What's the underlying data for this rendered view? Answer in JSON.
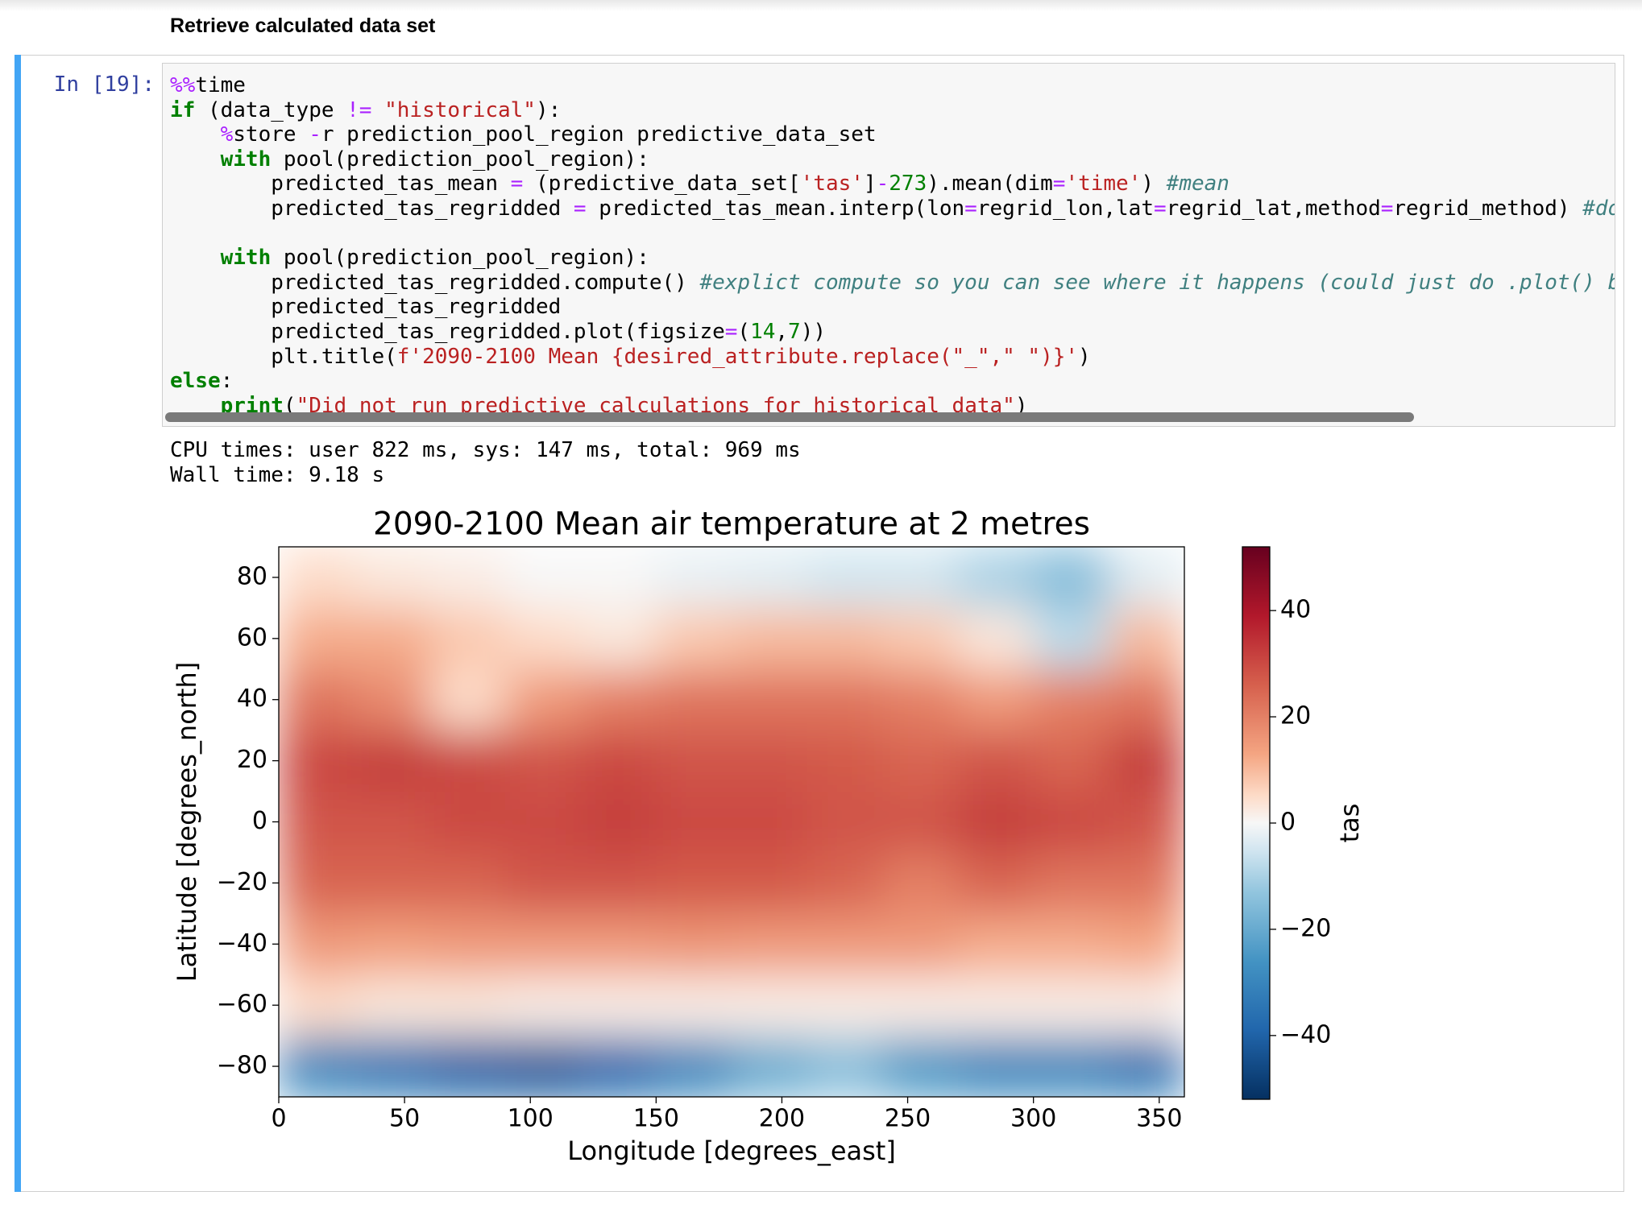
{
  "header": {
    "title": "Retrieve calculated data set"
  },
  "cell": {
    "prompt": "In [19]:",
    "code": "%%time\nif (data_type != \"historical\"):\n    %store -r prediction_pool_region predictive_data_set\n    with pool(prediction_pool_region):\n        predicted_tas_mean = (predictive_data_set['tas']-273).mean(dim='time') #mean\n        predicted_tas_regridded = predicted_tas_mean.interp(lon=regrid_lon,lat=regrid_lat,method=regrid_method) #dodgy\n\n    with pool(prediction_pool_region):\n        predicted_tas_regridded.compute() #explict compute so you can see where it happens (could just do .plot() but i\n        predicted_tas_regridded\n        predicted_tas_regridded.plot(figsize=(14,7))\n        plt.title(f'2090-2100 Mean {desired_attribute.replace(\"_\",\" \")}')\nelse:\n    print(\"Did not run predictive calculations for historical data\")",
    "output": [
      "CPU times: user 822 ms, sys: 147 ms, total: 969 ms",
      "Wall time: 9.18 s"
    ]
  },
  "chart_data": {
    "type": "heatmap",
    "title": "2090-2100 Mean air temperature at 2 metres",
    "x_label": "Longitude [degrees_east]",
    "y_label": "Latitude [degrees_north]",
    "colorbar_label": "tas",
    "colormap": "RdBu_r",
    "x": [
      15,
      45,
      75,
      105,
      135,
      165,
      195,
      225,
      255,
      285,
      315,
      345
    ],
    "y": [
      -80,
      -60,
      -40,
      -20,
      0,
      20,
      40,
      60,
      80
    ],
    "z": [
      [
        -30,
        -35,
        -40,
        -42,
        -38,
        -30,
        -20,
        -15,
        -25,
        -30,
        -30,
        -35
      ],
      [
        5,
        3,
        3,
        2,
        2,
        2,
        2,
        2,
        2,
        2,
        2,
        2
      ],
      [
        15,
        14,
        15,
        15,
        15,
        16,
        15,
        15,
        15,
        12,
        12,
        13
      ],
      [
        25,
        25,
        25,
        28,
        28,
        27,
        27,
        25,
        20,
        25,
        22,
        22
      ],
      [
        28,
        28,
        30,
        30,
        32,
        30,
        30,
        28,
        28,
        32,
        30,
        28
      ],
      [
        30,
        32,
        30,
        28,
        30,
        28,
        28,
        27,
        25,
        28,
        25,
        32
      ],
      [
        22,
        18,
        5,
        15,
        20,
        22,
        22,
        22,
        20,
        15,
        20,
        22
      ],
      [
        12,
        12,
        8,
        5,
        3,
        8,
        10,
        10,
        8,
        3,
        -8,
        10
      ],
      [
        5,
        3,
        2,
        0,
        0,
        -2,
        -3,
        -5,
        -5,
        -10,
        -15,
        -3
      ]
    ],
    "xlim": [
      0,
      360
    ],
    "ylim": [
      -90,
      90
    ],
    "xticks": [
      0,
      50,
      100,
      150,
      200,
      250,
      300,
      350
    ],
    "yticks": [
      {
        "value": -80,
        "label": "−80"
      },
      {
        "value": -60,
        "label": "−60"
      },
      {
        "value": -40,
        "label": "−40"
      },
      {
        "value": -20,
        "label": "−20"
      },
      0,
      20,
      40,
      60,
      80
    ],
    "clim": [
      -52,
      52
    ],
    "cticks": [
      {
        "value": -40,
        "label": "−40"
      },
      {
        "value": -20,
        "label": "−20"
      },
      0,
      20,
      40
    ]
  }
}
